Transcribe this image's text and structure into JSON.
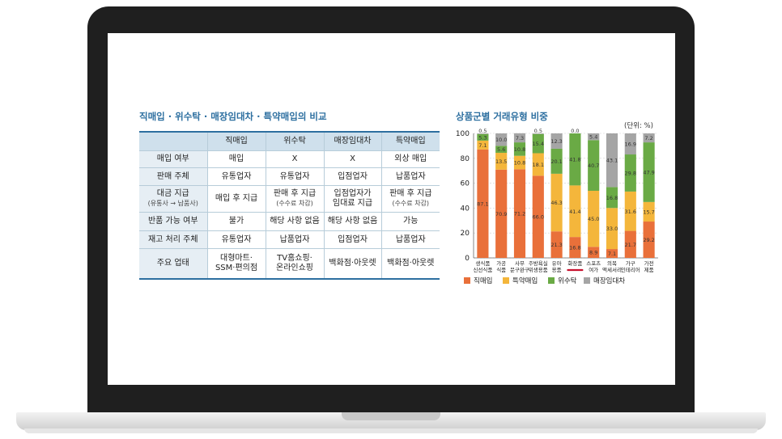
{
  "table": {
    "title": "직매입 · 위수탁 · 매장임대차 · 특약매입의 비교",
    "headers": [
      "",
      "직매입",
      "위수탁",
      "매장임대차",
      "특약매입"
    ],
    "rows": [
      {
        "head": "매입 여부",
        "cells": [
          "매입",
          "X",
          "X",
          "외상 매입"
        ]
      },
      {
        "head": "판매 주체",
        "cells": [
          "유통업자",
          "유통업자",
          "입점업자",
          "납품업자"
        ]
      },
      {
        "head": "대금 지급",
        "head_sub": "(유통사 → 납품사)",
        "cells": [
          "매입 후 지급",
          "판매 후 지급",
          "입점업자가",
          "판매 후 지급"
        ],
        "cells_sub": [
          "",
          "(수수료 차감)",
          "임대료 지급",
          "(수수료 차감)"
        ]
      },
      {
        "head": "반품 가능 여부",
        "cells": [
          "불가",
          "해당 사항 없음",
          "해당 사항 없음",
          "가능"
        ]
      },
      {
        "head": "재고 처리 주체",
        "cells": [
          "유통업자",
          "납품업자",
          "입점업자",
          "납품업자"
        ]
      },
      {
        "head": "주요 업태",
        "cells": [
          "대형마트·",
          "TV홈쇼핑·",
          "백화점·아웃렛",
          "백화점·아웃렛"
        ],
        "cells_sub": [
          "SSM·편의점",
          "온라인쇼핑",
          "",
          ""
        ]
      }
    ]
  },
  "chart_data": {
    "type": "bar",
    "stacked": true,
    "percent": true,
    "title": "상품군별 거래유형 비중",
    "unit": "(단위: %)",
    "categories": [
      [
        "생식품",
        "신선식품"
      ],
      [
        "가공",
        "식품"
      ],
      [
        "사무",
        "문구완구"
      ],
      [
        "주방욕실",
        "위생용품"
      ],
      [
        "유아",
        "용품"
      ],
      [
        "화장품",
        ""
      ],
      [
        "스포츠",
        "여가"
      ],
      [
        "의복",
        "액세서리"
      ],
      [
        "가구",
        "인테리어"
      ],
      [
        "가전",
        "제품"
      ]
    ],
    "series": [
      {
        "name": "직매입",
        "color": "#e9703a",
        "values": [
          87.1,
          70.9,
          71.2,
          66.0,
          21.3,
          16.8,
          8.9,
          7.1,
          21.7,
          29.2
        ]
      },
      {
        "name": "특약매입",
        "color": "#f4b63b",
        "values": [
          7.1,
          13.5,
          10.8,
          18.1,
          46.3,
          41.4,
          45.0,
          33.0,
          31.6,
          15.7
        ]
      },
      {
        "name": "위수탁",
        "color": "#6aaa45",
        "values": [
          5.3,
          5.6,
          10.8,
          15.4,
          20.1,
          41.8,
          40.7,
          16.8,
          29.8,
          47.9
        ]
      },
      {
        "name": "매장임대차",
        "color": "#a5a5a5",
        "values": [
          0.5,
          10.0,
          7.3,
          0.5,
          12.3,
          0.0,
          5.4,
          43.1,
          16.9,
          7.2
        ]
      }
    ],
    "ylim": [
      0,
      100
    ],
    "yticks": [
      0,
      20,
      40,
      60,
      80,
      100
    ],
    "highlight_category": "화장품",
    "highlight_color": "#c8102e"
  }
}
